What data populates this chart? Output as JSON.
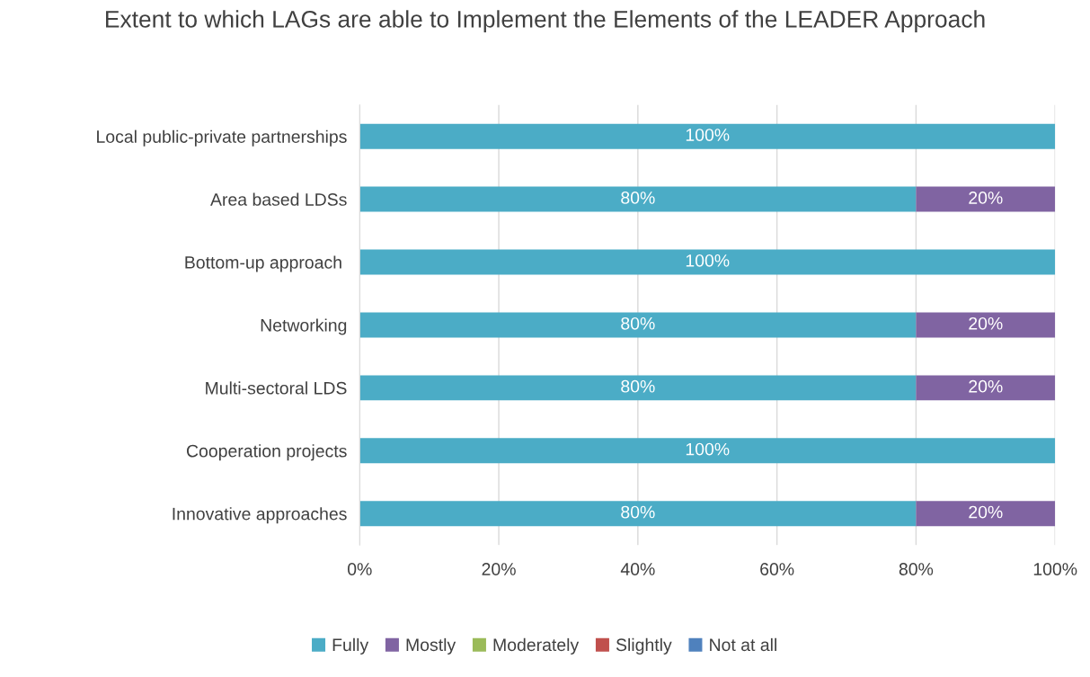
{
  "chart_data": {
    "type": "bar",
    "orientation": "horizontal",
    "stacked": true,
    "title": "Extent to which LAGs are able to Implement the Elements of the LEADER Approach",
    "categories": [
      "Local public-private partnerships",
      "Area based LDSs",
      "Bottom-up approach ",
      "Networking",
      "Multi-sectoral LDS",
      "Cooperation projects",
      "Innovative approaches"
    ],
    "series": [
      {
        "name": "Fully",
        "color": "#4bacc6",
        "values": [
          100,
          80,
          100,
          80,
          80,
          100,
          80
        ],
        "value_labels": [
          "100%",
          "80%",
          "100%",
          "80%",
          "80%",
          "100%",
          "80%"
        ]
      },
      {
        "name": "Mostly",
        "color": "#8064a2",
        "values": [
          0,
          20,
          0,
          20,
          20,
          0,
          20
        ],
        "value_labels": [
          null,
          "20%",
          null,
          "20%",
          "20%",
          null,
          "20%"
        ]
      },
      {
        "name": "Moderately",
        "color": "#9bbb59",
        "values": [
          0,
          0,
          0,
          0,
          0,
          0,
          0
        ]
      },
      {
        "name": "Slightly",
        "color": "#c0504d",
        "values": [
          0,
          0,
          0,
          0,
          0,
          0,
          0
        ]
      },
      {
        "name": "Not at all",
        "color": "#4f81bd",
        "values": [
          0,
          0,
          0,
          0,
          0,
          0,
          0
        ]
      }
    ],
    "xlim": [
      0,
      100
    ],
    "xticks": [
      {
        "value": 0,
        "label": "0%"
      },
      {
        "value": 20,
        "label": "20%"
      },
      {
        "value": 40,
        "label": "40%"
      },
      {
        "value": 60,
        "label": "60%"
      },
      {
        "value": 80,
        "label": "80%"
      },
      {
        "value": 100,
        "label": "100%"
      }
    ],
    "grid": "x",
    "legend": "bottom"
  }
}
